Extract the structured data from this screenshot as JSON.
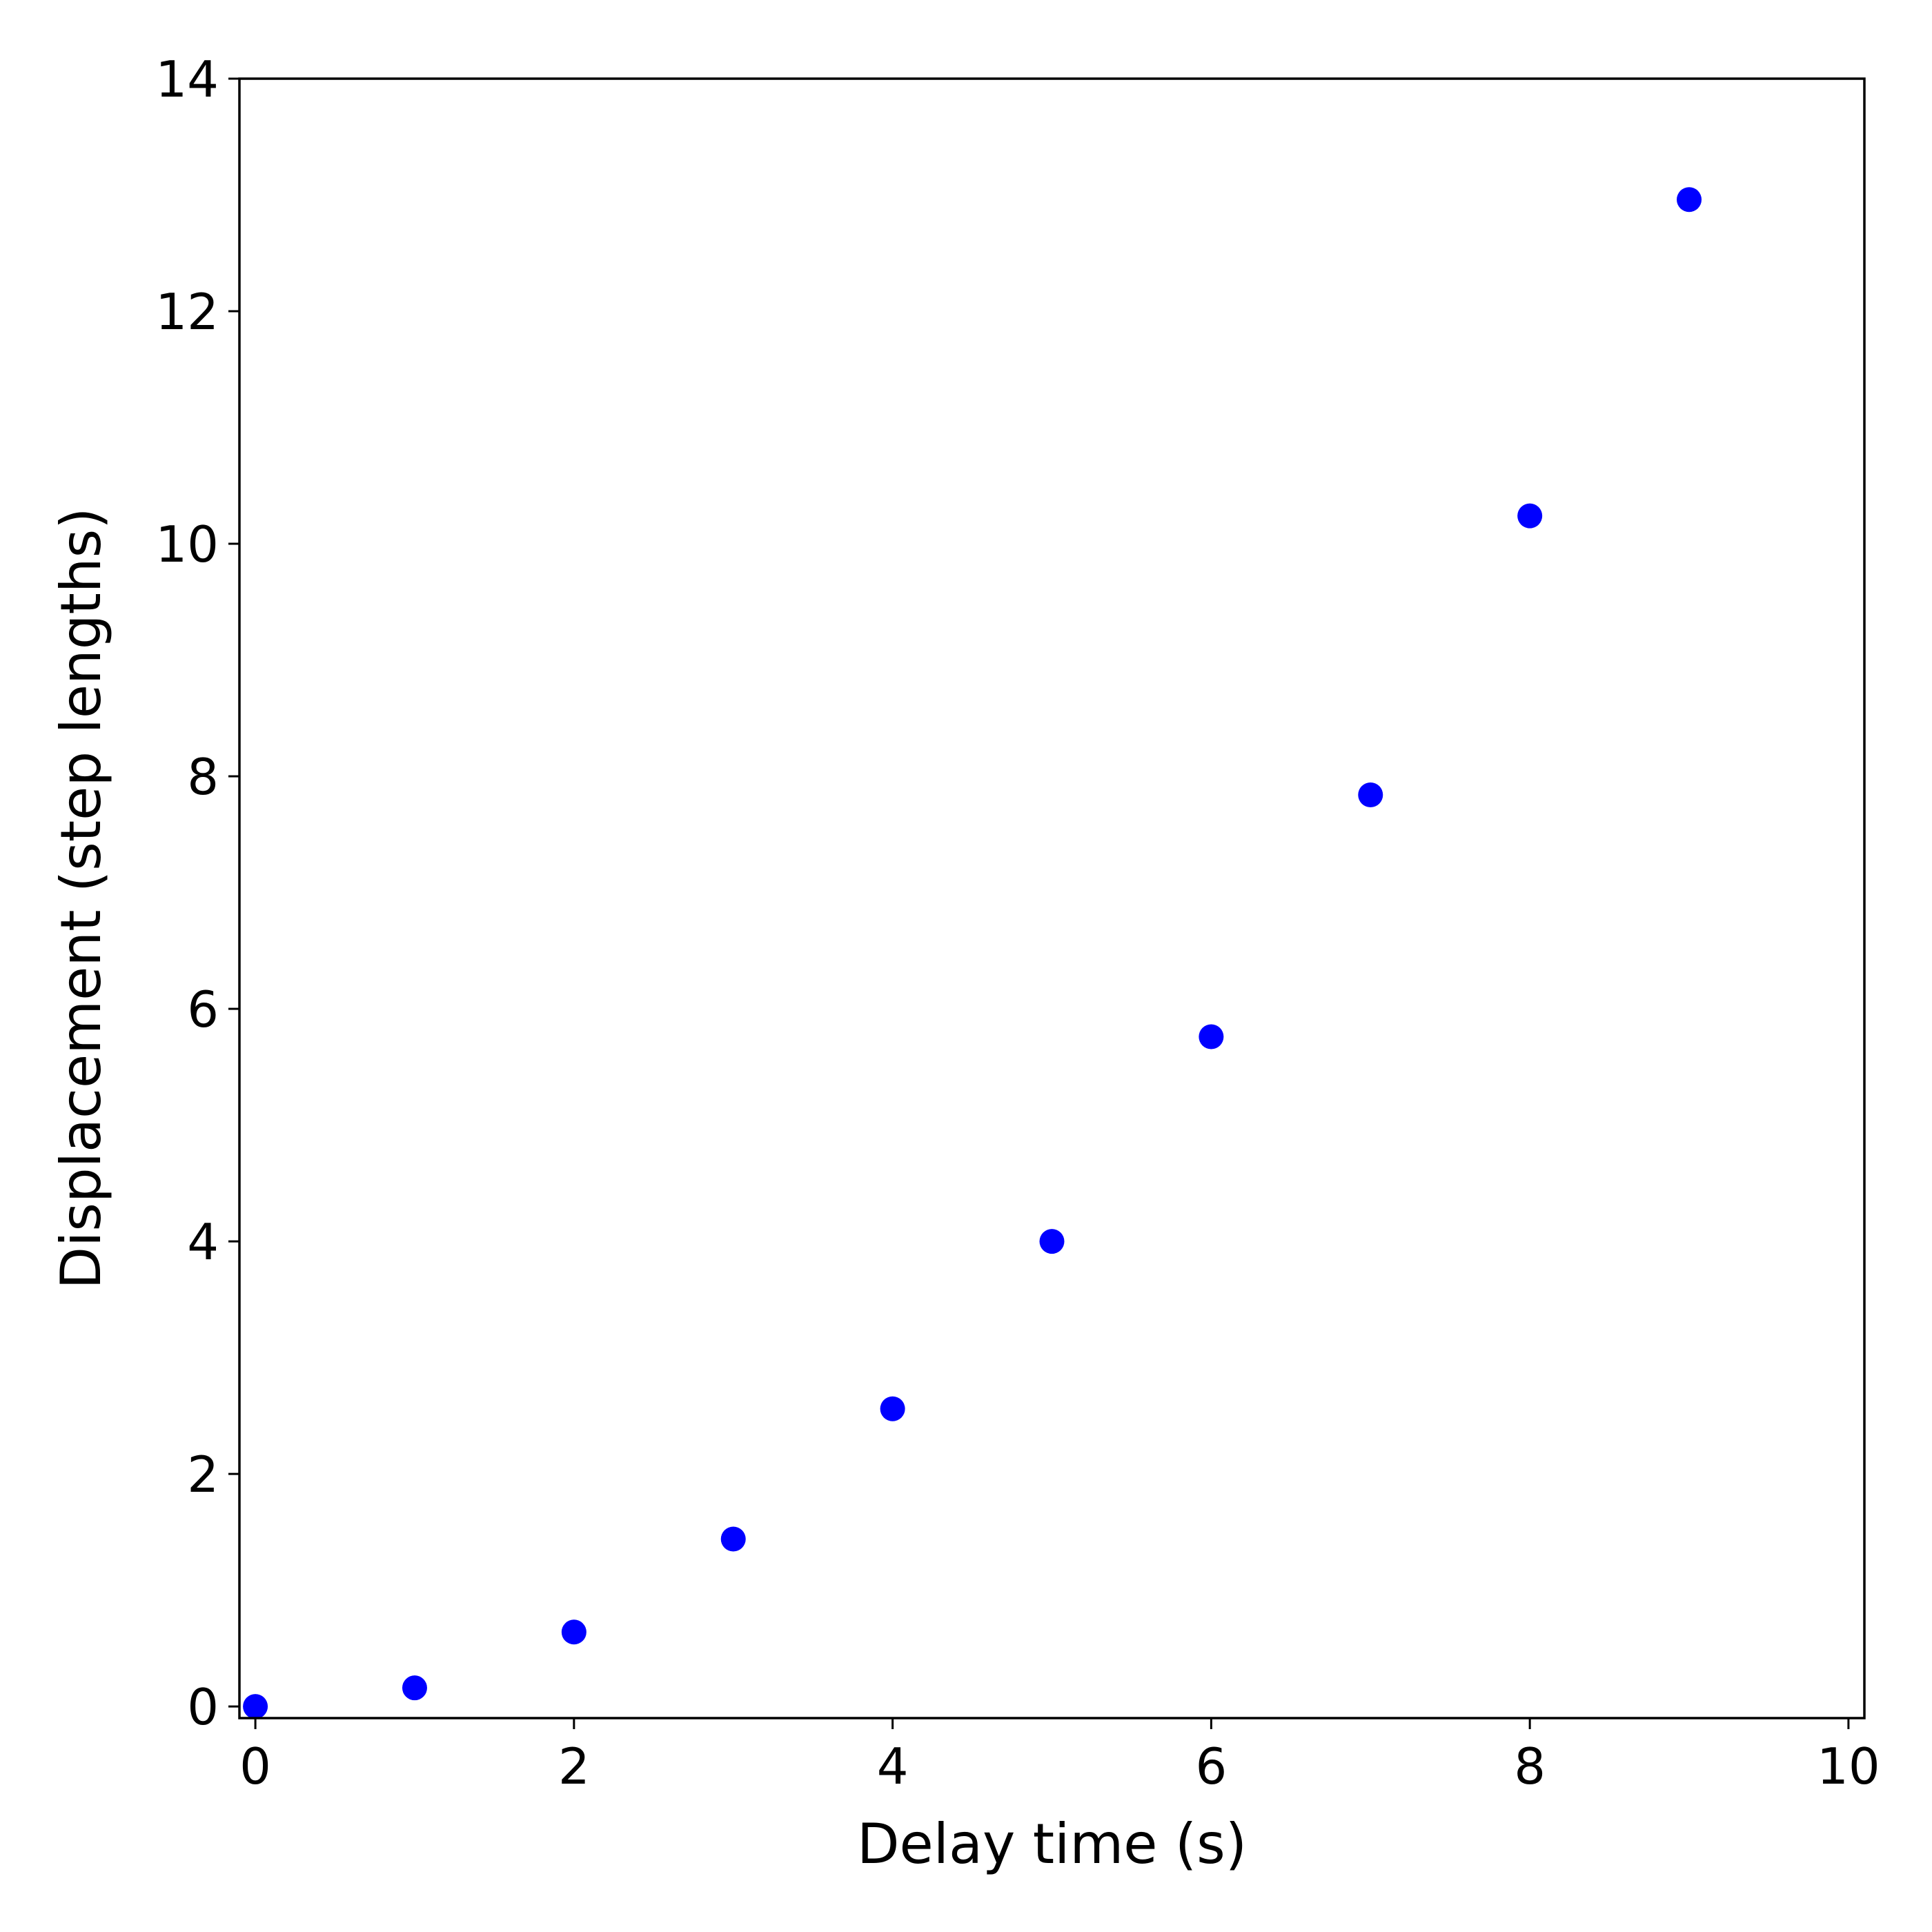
{
  "chart_data": {
    "type": "scatter",
    "title": "",
    "xlabel": "Delay time (s)",
    "ylabel": "Displacement (step lengths)",
    "xlim": [
      -0.1,
      10.1
    ],
    "ylim": [
      -0.1,
      14.0
    ],
    "xticks": [
      0,
      2,
      4,
      6,
      8,
      10
    ],
    "yticks": [
      0,
      2,
      4,
      6,
      8,
      10,
      12,
      14
    ],
    "x_tick_labels": [
      "0",
      "2",
      "4",
      "6",
      "8",
      "10"
    ],
    "y_tick_labels": [
      "0",
      "2",
      "4",
      "6",
      "8",
      "10",
      "12",
      "14"
    ],
    "grid": false,
    "legend": "none",
    "marker_color": "#0000ff",
    "series": [
      {
        "x": [
          0,
          1,
          2,
          3,
          4,
          5,
          6,
          7,
          8,
          9
        ],
        "y": [
          0.0,
          0.16,
          0.64,
          1.44,
          2.56,
          4.0,
          5.76,
          7.84,
          10.24,
          12.96
        ]
      }
    ]
  }
}
